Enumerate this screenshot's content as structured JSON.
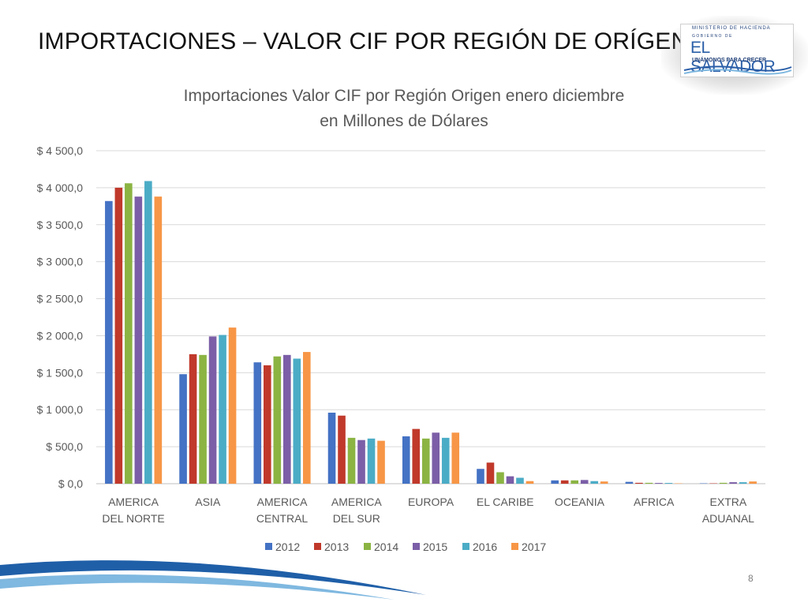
{
  "slide": {
    "title": "IMPORTACIONES –  VALOR CIF POR REGIÓN DE ORÍGEN",
    "page_number": "8"
  },
  "logo": {
    "ministry": "MINISTERIO DE HACIENDA",
    "government": "GOBIERNO DE",
    "country": "EL SALVADOR",
    "motto": "UNÁMONOS PARA CRECER"
  },
  "colors": {
    "s2012": "#4472c4",
    "s2013": "#c0392b",
    "s2014": "#8bb443",
    "s2015": "#7b5ea7",
    "s2016": "#4bacc6",
    "s2017": "#f79646",
    "swoosh_dark": "#1f5fa8",
    "swoosh_light": "#7fb8e0"
  },
  "chart_data": {
    "type": "bar",
    "title_lines": [
      "Importaciones Valor CIF por Región Origen enero diciembre",
      "en Millones de Dólares"
    ],
    "categories": [
      [
        "AMERICA",
        "DEL NORTE"
      ],
      [
        "ASIA"
      ],
      [
        "AMERICA",
        "CENTRAL"
      ],
      [
        "AMERICA",
        "DEL SUR"
      ],
      [
        "EUROPA"
      ],
      [
        "EL CARIBE"
      ],
      [
        "OCEANIA"
      ],
      [
        "AFRICA"
      ],
      [
        "EXTRA",
        "ADUANAL"
      ]
    ],
    "series": [
      {
        "name": "2012",
        "values": [
          3820,
          1480,
          1640,
          960,
          640,
          200,
          45,
          25,
          5
        ]
      },
      {
        "name": "2013",
        "values": [
          4000,
          1750,
          1600,
          920,
          740,
          285,
          45,
          12,
          5
        ]
      },
      {
        "name": "2014",
        "values": [
          4060,
          1740,
          1720,
          620,
          610,
          155,
          45,
          12,
          12
        ]
      },
      {
        "name": "2015",
        "values": [
          3880,
          1990,
          1740,
          590,
          690,
          100,
          50,
          10,
          20
        ]
      },
      {
        "name": "2016",
        "values": [
          4090,
          2010,
          1690,
          610,
          620,
          80,
          35,
          10,
          20
        ]
      },
      {
        "name": "2017",
        "values": [
          3880,
          2110,
          1780,
          580,
          690,
          35,
          30,
          5,
          30
        ]
      }
    ],
    "ylim": [
      0,
      4500
    ],
    "ytick_values": [
      0,
      500,
      1000,
      1500,
      2000,
      2500,
      3000,
      3500,
      4000,
      4500
    ],
    "ytick_labels": [
      "$ 0,0",
      "$ 500,0",
      "$ 1 000,0",
      "$ 1 500,0",
      "$ 2 000,0",
      "$ 2 500,0",
      "$ 3 000,0",
      "$ 3 500,0",
      "$ 4 000,0",
      "$ 4 500,0"
    ],
    "grid": true,
    "legend_position": "bottom"
  }
}
